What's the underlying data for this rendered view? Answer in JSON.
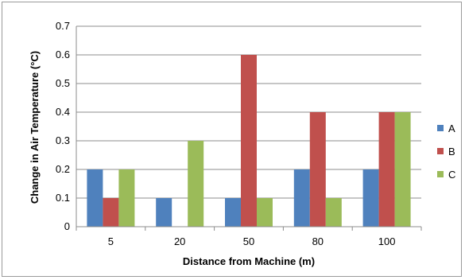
{
  "chart_data": {
    "type": "bar",
    "categories": [
      "5",
      "20",
      "50",
      "80",
      "100"
    ],
    "series": [
      {
        "name": "A",
        "color": "#4f81bd",
        "values": [
          0.2,
          0.1,
          0.1,
          0.2,
          0.2
        ]
      },
      {
        "name": "B",
        "color": "#c0504d",
        "values": [
          0.1,
          0,
          0.6,
          0.4,
          0.4
        ]
      },
      {
        "name": "C",
        "color": "#9bbb59",
        "values": [
          0.2,
          0.3,
          0.1,
          0.1,
          0.4
        ]
      }
    ],
    "xlabel": "Distance from Machine (m)",
    "ylabel": "Change in Air Temperature (°C)",
    "ylim": [
      0,
      0.7
    ],
    "yticks": [
      "0",
      "0.1",
      "0.2",
      "0.3",
      "0.4",
      "0.5",
      "0.6",
      "0.7"
    ],
    "grid": true,
    "legend": "right"
  }
}
